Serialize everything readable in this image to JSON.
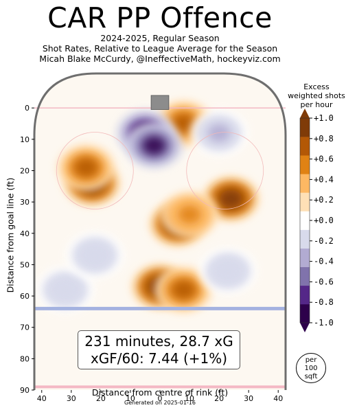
{
  "title": "CAR PP Offence",
  "subtitle_lines": [
    "2024-2025, Regular Season",
    "Shot Rates, Relative to League Average for the Season",
    "Micah Blake McCurdy, @IneffectiveMath, hockeyviz.com"
  ],
  "summary": {
    "line1": "231 minutes, 28.7 xG",
    "line2": "xGF/60: 7.44 (+1%)"
  },
  "footer": "Generated on 2025-01-16",
  "unit_badge": [
    "per",
    "100",
    "sqft"
  ],
  "colors": {
    "rink_border": "#6e6e6e",
    "goal_line": "#f4b8c4",
    "blue_line": "#a4b2e0",
    "net": "#8c8c8c"
  },
  "chart_data": {
    "type": "heatmap",
    "xlabel": "Distance from centre of rink (ft)",
    "ylabel": "Distance from goal line (ft)",
    "xlim": [
      42.5,
      -42.5
    ],
    "ylim": [
      -11,
      90
    ],
    "x_ticks": [
      40,
      30,
      20,
      10,
      0,
      10,
      20,
      30,
      40
    ],
    "y_ticks": [
      0,
      10,
      20,
      30,
      40,
      50,
      60,
      70,
      80,
      90
    ],
    "colorbar": {
      "title_lines": [
        "Excess",
        "weighted shots",
        "per hour"
      ],
      "levels": [
        -1.0,
        -0.8,
        -0.6,
        -0.4,
        -0.2,
        0.0,
        0.2,
        0.4,
        0.6,
        0.8,
        1.0
      ],
      "labels": [
        "-1.0",
        "-0.8",
        "-0.6",
        "-0.4",
        "-0.2",
        "+0.0",
        "+0.2",
        "+0.4",
        "+0.6",
        "+0.8",
        "+1.0"
      ],
      "colors": [
        "#2d004b",
        "#542788",
        "#8073ac",
        "#b2abd2",
        "#d8daeb",
        "#ffffff",
        "#fee0b6",
        "#fdb863",
        "#e08214",
        "#b35806",
        "#7f3b08"
      ]
    },
    "hotspots": [
      {
        "x": 23,
        "y": 24,
        "value": 1.0
      },
      {
        "x": 25,
        "y": 19,
        "value": 0.7
      },
      {
        "x": -24,
        "y": 29,
        "value": 1.0
      },
      {
        "x": -6,
        "y": 37,
        "value": 1.0
      },
      {
        "x": -10,
        "y": 34,
        "value": 0.6
      },
      {
        "x": 0,
        "y": 57,
        "value": 1.0
      },
      {
        "x": -8,
        "y": 58,
        "value": 0.7
      },
      {
        "x": -8,
        "y": 5,
        "value": 0.7
      },
      {
        "x": 5,
        "y": 8,
        "value": -1.0
      },
      {
        "x": 2,
        "y": 12,
        "value": -0.9
      },
      {
        "x": -20,
        "y": 8,
        "value": -0.4
      },
      {
        "x": 32,
        "y": 58,
        "value": -0.3
      },
      {
        "x": -23,
        "y": 52,
        "value": -0.3
      },
      {
        "x": 22,
        "y": 47,
        "value": -0.3
      }
    ]
  }
}
